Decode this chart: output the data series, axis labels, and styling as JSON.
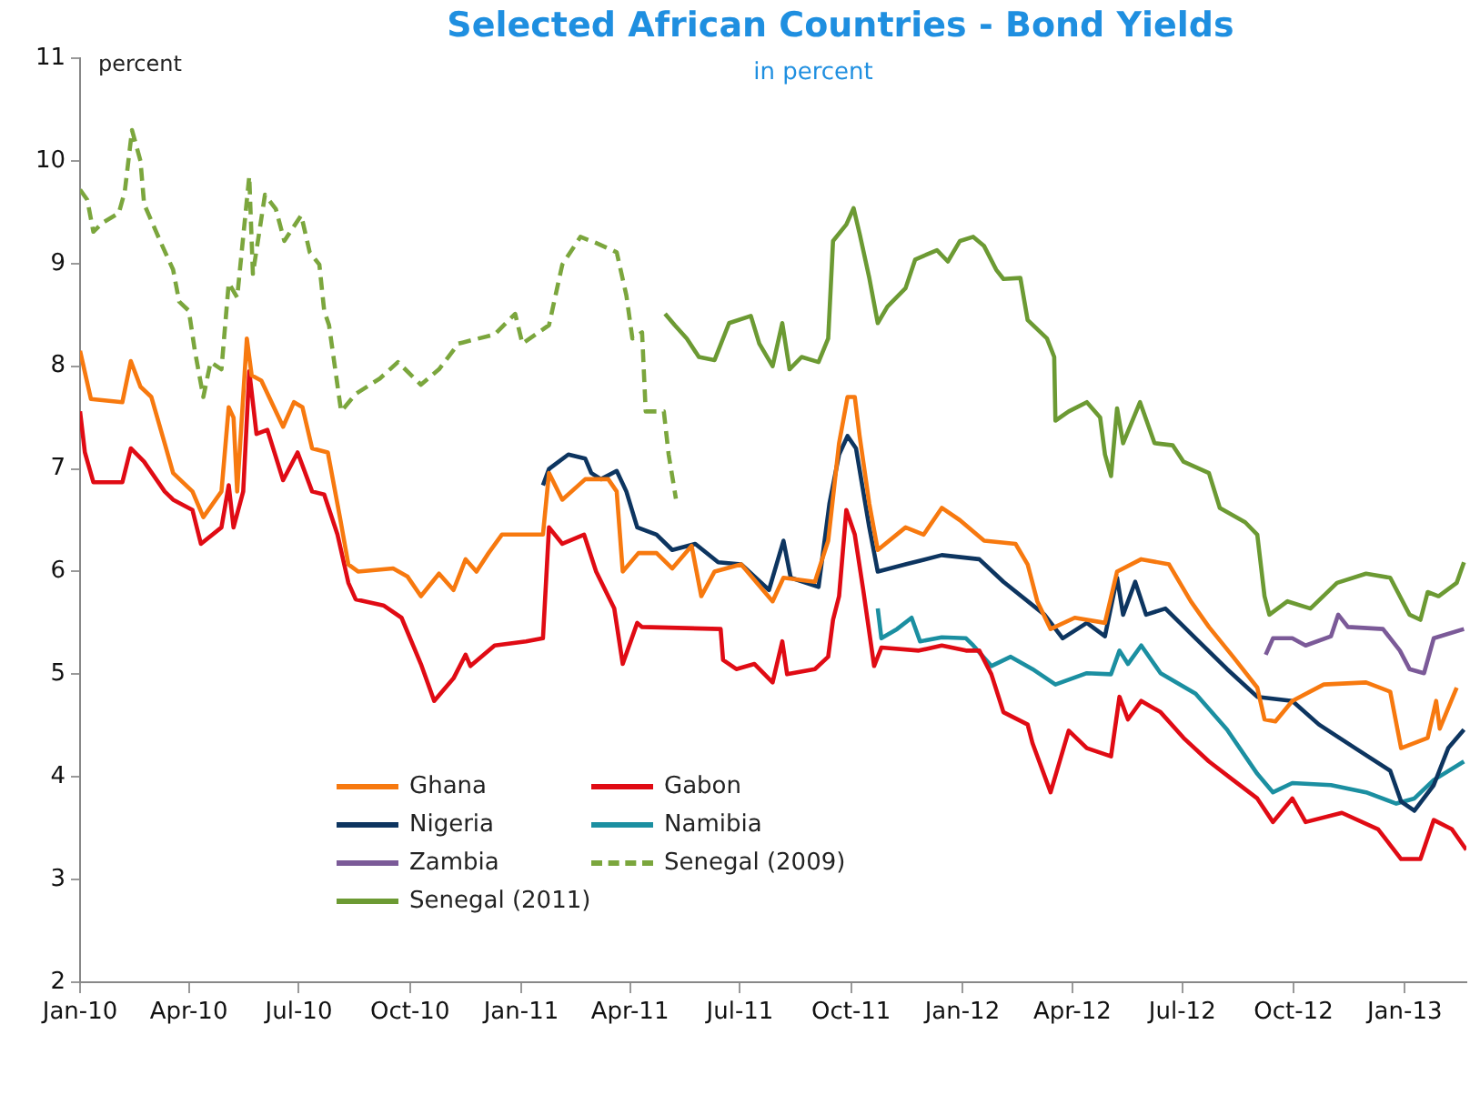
{
  "chart_data": {
    "type": "line",
    "title": "Selected African Countries - Bond Yields",
    "subtitle": "in percent",
    "ylabel": "percent",
    "xlim": [
      "2010-01-01",
      "2013-02-21"
    ],
    "xticks": [
      {
        "value": "2010-01",
        "label": "Jan-10"
      },
      {
        "value": "2010-04",
        "label": "Apr-10"
      },
      {
        "value": "2010-07",
        "label": "Jul-10"
      },
      {
        "value": "2010-10",
        "label": "Oct-10"
      },
      {
        "value": "2011-01",
        "label": "Jan-11"
      },
      {
        "value": "2011-04",
        "label": "Apr-11"
      },
      {
        "value": "2011-07",
        "label": "Jul-11"
      },
      {
        "value": "2011-10",
        "label": "Oct-11"
      },
      {
        "value": "2012-01",
        "label": "Jan-12"
      },
      {
        "value": "2012-04",
        "label": "Apr-12"
      },
      {
        "value": "2012-07",
        "label": "Jul-12"
      },
      {
        "value": "2012-10",
        "label": "Oct-12"
      },
      {
        "value": "2013-01",
        "label": "Jan-13"
      }
    ],
    "ylim": [
      2,
      11
    ],
    "yticks": [
      2,
      3,
      4,
      5,
      6,
      7,
      8,
      9,
      10,
      11
    ],
    "grid": false,
    "legend": "bottom left",
    "marker": "none",
    "line_style": "solid",
    "series": [
      {
        "name": "Ghana",
        "color": "#f7790f",
        "x": [
          "2010-01-01",
          "2010-01-10",
          "2010-02-05",
          "2010-02-12",
          "2010-02-20",
          "2010-03-01",
          "2010-03-12",
          "2010-03-19",
          "2010-04-04",
          "2010-04-13",
          "2010-04-28",
          "2010-05-04",
          "2010-05-08",
          "2010-05-11",
          "2010-05-19",
          "2010-05-23",
          "2010-05-31",
          "2010-06-18",
          "2010-06-27",
          "2010-07-04",
          "2010-07-12",
          "2010-07-25",
          "2010-08-04",
          "2010-08-11",
          "2010-08-19",
          "2010-09-17",
          "2010-09-29",
          "2010-10-10",
          "2010-10-25",
          "2010-11-06",
          "2010-11-16",
          "2010-11-25",
          "2010-12-05",
          "2010-12-16",
          "2011-01-19",
          "2011-01-24",
          "2011-02-04",
          "2011-02-23",
          "2011-03-14",
          "2011-03-21",
          "2011-03-26",
          "2011-04-08",
          "2011-04-23",
          "2011-05-06",
          "2011-05-22",
          "2011-05-30",
          "2011-06-10",
          "2011-07-02",
          "2011-07-28",
          "2011-08-06",
          "2011-09-01",
          "2011-09-12",
          "2011-09-21",
          "2011-09-28",
          "2011-10-04",
          "2011-10-08",
          "2011-10-16",
          "2011-10-23",
          "2011-11-15",
          "2011-11-30",
          "2011-12-15",
          "2011-12-30",
          "2012-01-19",
          "2012-02-14",
          "2012-02-24",
          "2012-03-03",
          "2012-03-14",
          "2012-04-03",
          "2012-04-28",
          "2012-05-08",
          "2012-05-28",
          "2012-06-20",
          "2012-07-08",
          "2012-07-23",
          "2012-08-12",
          "2012-09-01",
          "2012-09-07",
          "2012-09-16",
          "2012-09-30",
          "2012-10-26",
          "2012-11-30",
          "2012-12-20",
          "2012-12-29",
          "2013-01-20",
          "2013-01-27",
          "2013-01-30",
          "2013-02-13"
        ],
        "values": [
          8.15,
          7.68,
          7.65,
          8.05,
          7.8,
          7.7,
          7.25,
          6.96,
          6.78,
          6.53,
          6.78,
          7.6,
          7.5,
          6.78,
          8.27,
          7.91,
          7.86,
          7.41,
          7.65,
          7.6,
          7.2,
          7.16,
          6.53,
          6.07,
          6.0,
          6.03,
          5.95,
          5.76,
          5.98,
          5.82,
          6.12,
          6.0,
          6.18,
          6.36,
          6.36,
          6.96,
          6.7,
          6.9,
          6.9,
          6.78,
          6.0,
          6.18,
          6.18,
          6.03,
          6.25,
          5.76,
          6.0,
          6.07,
          5.71,
          5.94,
          5.9,
          6.3,
          7.25,
          7.7,
          7.7,
          7.32,
          6.66,
          6.21,
          6.43,
          6.36,
          6.62,
          6.5,
          6.3,
          6.27,
          6.07,
          5.71,
          5.44,
          5.55,
          5.5,
          6.0,
          6.12,
          6.07,
          5.71,
          5.46,
          5.17,
          4.87,
          4.56,
          4.54,
          4.74,
          4.9,
          4.92,
          4.83,
          4.28,
          4.38,
          4.74,
          4.47,
          4.87
        ]
      },
      {
        "name": "Gabon",
        "color": "#e00b14",
        "x": [
          "2010-01-01",
          "2010-01-05",
          "2010-01-12",
          "2010-02-05",
          "2010-02-12",
          "2010-02-23",
          "2010-03-12",
          "2010-03-19",
          "2010-04-04",
          "2010-04-11",
          "2010-04-28",
          "2010-05-04",
          "2010-05-08",
          "2010-05-16",
          "2010-05-21",
          "2010-05-27",
          "2010-06-05",
          "2010-06-18",
          "2010-06-30",
          "2010-07-12",
          "2010-07-22",
          "2010-08-02",
          "2010-08-11",
          "2010-08-17",
          "2010-09-09",
          "2010-09-24",
          "2010-10-10",
          "2010-10-21",
          "2010-11-06",
          "2010-11-16",
          "2010-11-20",
          "2010-12-10",
          "2011-01-05",
          "2011-01-19",
          "2011-01-24",
          "2011-02-04",
          "2011-02-22",
          "2011-03-04",
          "2011-03-19",
          "2011-03-26",
          "2011-04-07",
          "2011-04-11",
          "2011-06-15",
          "2011-06-17",
          "2011-06-28",
          "2011-07-13",
          "2011-07-28",
          "2011-08-05",
          "2011-08-09",
          "2011-09-01",
          "2011-09-12",
          "2011-09-16",
          "2011-09-21",
          "2011-09-27",
          "2011-10-04",
          "2011-10-11",
          "2011-10-20",
          "2011-10-26",
          "2011-11-26",
          "2011-12-15",
          "2012-01-04",
          "2012-01-15",
          "2012-01-25",
          "2012-02-04",
          "2012-02-24",
          "2012-02-28",
          "2012-03-14",
          "2012-03-29",
          "2012-04-13",
          "2012-05-03",
          "2012-05-10",
          "2012-05-17",
          "2012-05-28",
          "2012-06-13",
          "2012-07-02",
          "2012-07-23",
          "2012-08-12",
          "2012-09-01",
          "2012-09-14",
          "2012-09-30",
          "2012-10-11",
          "2012-11-10",
          "2012-12-10",
          "2012-12-29",
          "2013-01-14",
          "2013-01-25",
          "2013-02-09",
          "2013-02-21"
        ],
        "values": [
          7.56,
          7.16,
          6.87,
          6.87,
          7.2,
          7.07,
          6.78,
          6.7,
          6.6,
          6.27,
          6.43,
          6.84,
          6.43,
          6.78,
          7.95,
          7.34,
          7.38,
          6.89,
          7.16,
          6.78,
          6.75,
          6.36,
          5.89,
          5.73,
          5.67,
          5.55,
          5.1,
          4.74,
          4.96,
          5.19,
          5.08,
          5.28,
          5.32,
          5.35,
          6.43,
          6.27,
          6.36,
          6.0,
          5.64,
          5.1,
          5.5,
          5.46,
          5.44,
          5.14,
          5.05,
          5.1,
          4.92,
          5.32,
          5.0,
          5.05,
          5.17,
          5.53,
          5.76,
          6.6,
          6.36,
          5.82,
          5.08,
          5.26,
          5.23,
          5.28,
          5.23,
          5.23,
          5.0,
          4.63,
          4.51,
          4.33,
          3.85,
          4.45,
          4.28,
          4.2,
          4.78,
          4.56,
          4.74,
          4.63,
          4.38,
          4.15,
          3.97,
          3.79,
          3.56,
          3.79,
          3.56,
          3.65,
          3.49,
          3.2,
          3.2,
          3.58,
          3.49,
          3.29
        ]
      },
      {
        "name": "Nigeria",
        "color": "#0d3560",
        "x": [
          "2011-01-19",
          "2011-01-24",
          "2011-02-09",
          "2011-02-23",
          "2011-02-28",
          "2011-03-08",
          "2011-03-21",
          "2011-03-29",
          "2011-04-07",
          "2011-04-23",
          "2011-05-06",
          "2011-05-25",
          "2011-06-13",
          "2011-07-02",
          "2011-07-25",
          "2011-08-06",
          "2011-08-12",
          "2011-09-04",
          "2011-09-13",
          "2011-09-21",
          "2011-09-28",
          "2011-10-05",
          "2011-10-16",
          "2011-10-23",
          "2011-11-15",
          "2011-12-15",
          "2012-01-15",
          "2012-02-04",
          "2012-03-09",
          "2012-03-24",
          "2012-04-13",
          "2012-04-28",
          "2012-05-08",
          "2012-05-13",
          "2012-05-23",
          "2012-06-01",
          "2012-06-17",
          "2012-07-12",
          "2012-08-07",
          "2012-09-01",
          "2012-09-30",
          "2012-10-22",
          "2012-11-21",
          "2012-12-20",
          "2012-12-29",
          "2013-01-09",
          "2013-01-25",
          "2013-02-06",
          "2013-02-19"
        ],
        "values": [
          6.84,
          7.0,
          7.14,
          7.1,
          6.96,
          6.9,
          6.98,
          6.78,
          6.43,
          6.36,
          6.21,
          6.27,
          6.09,
          6.07,
          5.82,
          6.3,
          5.94,
          5.85,
          6.66,
          7.14,
          7.32,
          7.2,
          6.43,
          6.0,
          6.07,
          6.16,
          6.12,
          5.9,
          5.58,
          5.35,
          5.5,
          5.37,
          5.94,
          5.58,
          5.9,
          5.58,
          5.64,
          5.35,
          5.05,
          4.78,
          4.74,
          4.51,
          4.28,
          4.06,
          3.76,
          3.67,
          3.92,
          4.28,
          4.46
        ]
      },
      {
        "name": "Namibia",
        "color": "#1b8fa1",
        "x": [
          "2011-10-23",
          "2011-10-26",
          "2011-11-08",
          "2011-11-20",
          "2011-11-27",
          "2011-12-15",
          "2012-01-04",
          "2012-01-10",
          "2012-01-25",
          "2012-02-10",
          "2012-02-28",
          "2012-03-18",
          "2012-04-13",
          "2012-05-03",
          "2012-05-10",
          "2012-05-17",
          "2012-05-28",
          "2012-06-13",
          "2012-07-12",
          "2012-08-07",
          "2012-09-01",
          "2012-09-14",
          "2012-09-30",
          "2012-11-01",
          "2012-11-30",
          "2012-12-25",
          "2013-01-09",
          "2013-01-25",
          "2013-02-19"
        ],
        "values": [
          5.64,
          5.35,
          5.44,
          5.55,
          5.32,
          5.36,
          5.35,
          5.28,
          5.08,
          5.17,
          5.05,
          4.9,
          5.01,
          5.0,
          5.23,
          5.1,
          5.28,
          5.01,
          4.81,
          4.46,
          4.03,
          3.85,
          3.94,
          3.92,
          3.85,
          3.74,
          3.79,
          3.97,
          4.15
        ]
      },
      {
        "name": "Zambia",
        "color": "#7b5a98",
        "x": [
          "2012-09-08",
          "2012-09-14",
          "2012-09-30",
          "2012-10-11",
          "2012-11-01",
          "2012-11-07",
          "2012-11-15",
          "2012-12-14",
          "2012-12-28",
          "2013-01-05",
          "2013-01-17",
          "2013-01-25",
          "2013-02-19"
        ],
        "values": [
          5.19,
          5.35,
          5.35,
          5.28,
          5.37,
          5.58,
          5.46,
          5.44,
          5.23,
          5.05,
          5.01,
          5.35,
          5.44
        ]
      },
      {
        "name": "Senegal (2009)",
        "color": "#7ba63d",
        "line_style": "dashed",
        "x": [
          "2010-01-01",
          "2010-01-07",
          "2010-01-12",
          "2010-01-20",
          "2010-02-02",
          "2010-02-07",
          "2010-02-13",
          "2010-02-20",
          "2010-02-23",
          "2010-03-09",
          "2010-03-19",
          "2010-03-24",
          "2010-04-01",
          "2010-04-06",
          "2010-04-13",
          "2010-04-19",
          "2010-04-28",
          "2010-05-04",
          "2010-05-11",
          "2010-05-17",
          "2010-05-21",
          "2010-05-24",
          "2010-06-03",
          "2010-06-12",
          "2010-06-19",
          "2010-07-03",
          "2010-07-10",
          "2010-07-18",
          "2010-07-22",
          "2010-07-26",
          "2010-08-05",
          "2010-08-17",
          "2010-09-06",
          "2010-09-21",
          "2010-10-10",
          "2010-10-25",
          "2010-11-10",
          "2010-12-10",
          "2010-12-27",
          "2011-01-02",
          "2011-01-24",
          "2011-02-04",
          "2011-02-19",
          "2011-03-04",
          "2011-03-21",
          "2011-03-29",
          "2011-04-03",
          "2011-04-11",
          "2011-04-14",
          "2011-04-29",
          "2011-05-03",
          "2011-05-09"
        ],
        "values": [
          9.72,
          9.62,
          9.31,
          9.4,
          9.49,
          9.7,
          10.3,
          10.0,
          9.58,
          9.2,
          8.94,
          8.63,
          8.54,
          8.15,
          7.7,
          8.04,
          7.97,
          8.81,
          8.67,
          9.38,
          9.85,
          8.9,
          9.67,
          9.53,
          9.22,
          9.47,
          9.11,
          8.99,
          8.54,
          8.4,
          7.56,
          7.73,
          7.88,
          8.04,
          7.82,
          7.97,
          8.22,
          8.31,
          8.51,
          8.22,
          8.4,
          8.99,
          9.26,
          9.2,
          9.11,
          8.69,
          8.27,
          8.33,
          7.56,
          7.56,
          7.14,
          6.71
        ]
      },
      {
        "name": "Senegal (2011)",
        "color": "#6c9a33",
        "x": [
          "2011-04-30",
          "2011-05-08",
          "2011-05-18",
          "2011-05-28",
          "2011-06-10",
          "2011-06-22",
          "2011-07-10",
          "2011-07-17",
          "2011-07-28",
          "2011-08-05",
          "2011-08-11",
          "2011-08-21",
          "2011-09-04",
          "2011-09-12",
          "2011-09-16",
          "2011-09-27",
          "2011-10-03",
          "2011-10-08",
          "2011-10-16",
          "2011-10-23",
          "2011-10-31",
          "2011-11-15",
          "2011-11-23",
          "2011-12-11",
          "2011-12-20",
          "2011-12-30",
          "2012-01-10",
          "2012-01-19",
          "2012-01-29",
          "2012-02-04",
          "2012-02-18",
          "2012-02-24",
          "2012-03-11",
          "2012-03-17",
          "2012-03-18",
          "2012-03-29",
          "2012-04-13",
          "2012-04-24",
          "2012-04-28",
          "2012-05-03",
          "2012-05-08",
          "2012-05-13",
          "2012-05-27",
          "2012-06-08",
          "2012-06-23",
          "2012-07-02",
          "2012-07-23",
          "2012-08-01",
          "2012-08-22",
          "2012-09-01",
          "2012-09-07",
          "2012-09-11",
          "2012-09-26",
          "2012-10-15",
          "2012-11-06",
          "2012-11-30",
          "2012-12-20",
          "2013-01-05",
          "2013-01-14",
          "2013-01-20",
          "2013-01-29",
          "2013-02-13",
          "2013-02-19"
        ],
        "values": [
          8.51,
          8.4,
          8.27,
          8.09,
          8.06,
          8.42,
          8.49,
          8.22,
          8.0,
          8.42,
          7.97,
          8.09,
          8.04,
          8.27,
          9.22,
          9.38,
          9.54,
          9.29,
          8.86,
          8.42,
          8.58,
          8.76,
          9.04,
          9.13,
          9.02,
          9.22,
          9.26,
          9.17,
          8.94,
          8.85,
          8.86,
          8.45,
          8.27,
          8.09,
          7.47,
          7.56,
          7.65,
          7.5,
          7.14,
          6.93,
          7.59,
          7.25,
          7.65,
          7.25,
          7.23,
          7.07,
          6.96,
          6.62,
          6.48,
          6.36,
          5.76,
          5.58,
          5.71,
          5.64,
          5.89,
          5.98,
          5.94,
          5.58,
          5.53,
          5.8,
          5.76,
          5.89,
          6.09
        ]
      }
    ]
  }
}
